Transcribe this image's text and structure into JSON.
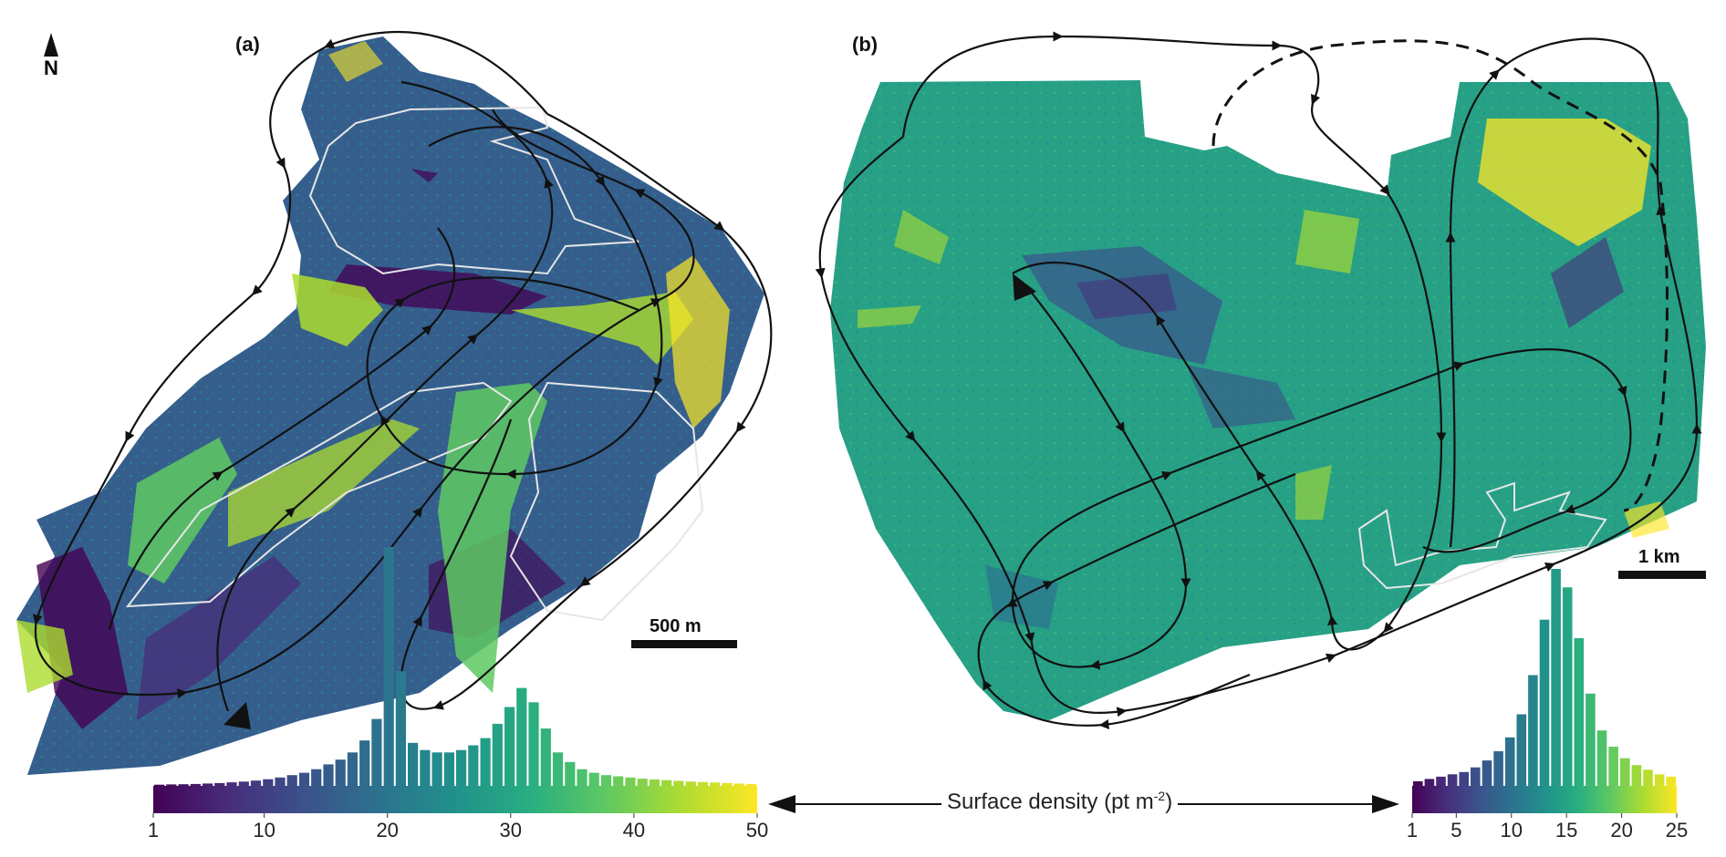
{
  "panels": [
    {
      "label": "(a)",
      "scale_bar": "500 m"
    },
    {
      "label": "(b)",
      "scale_bar": "1 km"
    }
  ],
  "north_arrow": "N",
  "density_label": "Surface density (pt m",
  "density_sup": "-2",
  "density_close": ")",
  "colorbar_a": {
    "ticks": [
      "1",
      "10",
      "20",
      "30",
      "40",
      "50"
    ],
    "tick_values": [
      1,
      10,
      20,
      30,
      40,
      50
    ],
    "range": [
      1,
      50
    ],
    "histogram": [
      0.5,
      0.6,
      0.7,
      0.8,
      1,
      1.2,
      1.5,
      1.8,
      2.2,
      2.8,
      3.5,
      4.5,
      5.5,
      7,
      9,
      11,
      14,
      19,
      28,
      100,
      48,
      18,
      15,
      14,
      14,
      15,
      17,
      20,
      26,
      33,
      41,
      35,
      24,
      14,
      10,
      7,
      5.5,
      4.5,
      4,
      3.5,
      3,
      2.7,
      2.4,
      2.1,
      1.8,
      1.6,
      1.4,
      1.2,
      1,
      0.8
    ]
  },
  "colorbar_b": {
    "ticks": [
      "1",
      "5",
      "10",
      "15",
      "20",
      "25"
    ],
    "tick_values": [
      1,
      5,
      10,
      15,
      20,
      25
    ],
    "range": [
      1,
      25
    ],
    "histogram": [
      2,
      3,
      4,
      5,
      6,
      8,
      11,
      15,
      21,
      31,
      48,
      72,
      94,
      86,
      64,
      40,
      24,
      17,
      12,
      9,
      7,
      5,
      4
    ]
  },
  "colors": {
    "viridis": [
      "#440154",
      "#472d7b",
      "#3b528b",
      "#2c728e",
      "#21918c",
      "#28ae80",
      "#5ec962",
      "#addc30",
      "#fde725"
    ],
    "track": "#111111",
    "outline": "#e6e6e6"
  }
}
